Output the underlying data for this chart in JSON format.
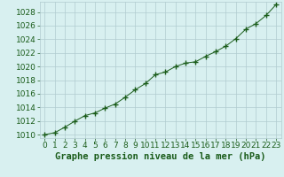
{
  "x": [
    0,
    1,
    2,
    3,
    4,
    5,
    6,
    7,
    8,
    9,
    10,
    11,
    12,
    13,
    14,
    15,
    16,
    17,
    18,
    19,
    20,
    21,
    22,
    23
  ],
  "y": [
    1010.0,
    1010.3,
    1011.1,
    1012.0,
    1012.8,
    1013.2,
    1013.9,
    1014.5,
    1015.5,
    1016.6,
    1017.5,
    1018.8,
    1019.2,
    1020.0,
    1020.5,
    1020.7,
    1021.5,
    1022.2,
    1023.0,
    1024.1,
    1025.5,
    1026.3,
    1027.5,
    1029.1
  ],
  "line_color": "#1a5c1a",
  "marker": "+",
  "marker_size": 4,
  "marker_linewidth": 1.0,
  "background_color": "#d8f0f0",
  "grid_color": "#b0ccd0",
  "text_color": "#1a5c1a",
  "xlabel": "Graphe pression niveau de la mer (hPa)",
  "ylim_min": 1009.5,
  "ylim_max": 1029.5,
  "ytick_start": 1010,
  "ytick_end": 1028,
  "ytick_step": 2,
  "xlim_min": -0.5,
  "xlim_max": 23.5,
  "label_fontsize": 7.5,
  "tick_fontsize": 6.5
}
